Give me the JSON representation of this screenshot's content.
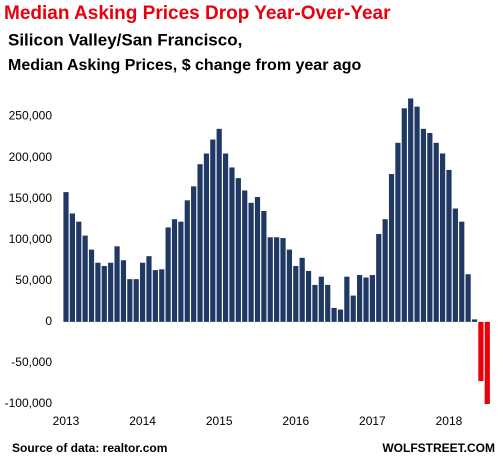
{
  "chart_data": {
    "type": "bar",
    "title": "Median Asking Prices Drop Year-Over-Year",
    "subtitle": "Silicon Valley/San  Francisco,",
    "subtitle2": "Median Asking Prices, $ change from year ago",
    "source": "Source of data: realtor.com",
    "credit": "WOLFSTREET.COM",
    "categories": [
      "2013",
      null,
      null,
      null,
      null,
      null,
      null,
      null,
      null,
      null,
      null,
      null,
      "2014",
      null,
      null,
      null,
      null,
      null,
      null,
      null,
      null,
      null,
      null,
      null,
      "2015",
      null,
      null,
      null,
      null,
      null,
      null,
      null,
      null,
      null,
      null,
      null,
      "2016",
      null,
      null,
      null,
      null,
      null,
      null,
      null,
      null,
      null,
      null,
      null,
      "2017",
      null,
      null,
      null,
      null,
      null,
      null,
      null,
      null,
      null,
      null,
      null,
      "2018",
      null,
      null,
      null,
      null,
      null,
      null
    ],
    "values": [
      158000,
      132000,
      122000,
      105000,
      88000,
      72000,
      68000,
      72000,
      92000,
      75000,
      52000,
      52000,
      72000,
      80000,
      63000,
      64000,
      115000,
      125000,
      122000,
      148000,
      165000,
      192000,
      205000,
      222000,
      235000,
      205000,
      188000,
      175000,
      160000,
      145000,
      152000,
      135000,
      103000,
      103000,
      102000,
      88000,
      68000,
      78000,
      62000,
      45000,
      55000,
      45000,
      17000,
      15000,
      55000,
      32000,
      57000,
      54000,
      57000,
      107000,
      125000,
      180000,
      218000,
      260000,
      272000,
      262000,
      235000,
      230000,
      218000,
      205000,
      185000,
      138000,
      122000,
      58000,
      3000,
      -72000,
      -100000
    ],
    "color": "#1f3864",
    "negative_color": "#e8000b",
    "ylim": [
      -100000,
      275000
    ],
    "yticks": [
      {
        "value": -100000,
        "label": "-100,000"
      },
      {
        "value": -50000,
        "label": "-50,000"
      },
      0,
      {
        "value": 50000,
        "label": "50,000"
      },
      {
        "value": 100000,
        "label": "100,000"
      },
      {
        "value": 150000,
        "label": "150,000"
      },
      {
        "value": 200000,
        "label": "200,000"
      },
      {
        "value": 250000,
        "label": "250,000"
      }
    ],
    "grid": false
  }
}
